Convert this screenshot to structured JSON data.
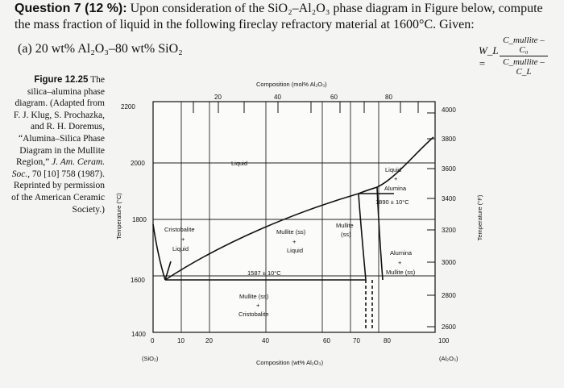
{
  "question": {
    "title": "Question 7 (12 %):",
    "line1_rest": "Upon consideration of the SiO₂–Al₂O₃ phase diagram in Figure below, compute",
    "line2": "the mass fraction of liquid in the following fireclay refractory material at 1600°C. Given:",
    "part_a": "(a) 20 wt% Al₂O₃–80 wt% SiO₂",
    "formula_lhs": "W_L =",
    "formula_num": "C_mullite – C₀",
    "formula_den": "C_mullite – C_L"
  },
  "caption": {
    "figure": "Figure 12.25",
    "text_1": "The silica–alumina phase diagram. (Adapted from F. J. Klug, S. Prochazka, and R. H. Doremus, “Alumina–Silica Phase Diagram in the Mullite Region,”",
    "journal": "J. Am. Ceram. Soc.,",
    "text_2": "70 [10] 758 (1987). Reprinted by permission of the American Ceramic Society.)"
  },
  "diagram": {
    "top_axis_title": "Composition (mol% Al₂O₃)",
    "top_ticks": [
      "20",
      "40",
      "60",
      "80"
    ],
    "bottom_axis_title": "Composition (wt% Al₂O₃)",
    "bottom_ticks": [
      "0",
      "10",
      "20",
      "40",
      "60",
      "70",
      "80",
      "100"
    ],
    "left_axis_title": "Temperature (°C)",
    "left_ticks": [
      "2200",
      "2000",
      "1800",
      "1600",
      "1400"
    ],
    "right_axis_title": "Temperature (°F)",
    "right_ticks": [
      "4000",
      "3800",
      "3600",
      "3400",
      "3200",
      "3000",
      "2800",
      "2600"
    ],
    "end_left": "(SiO₂)",
    "end_right": "(Al₂O₃)",
    "regions": {
      "liquid": "Liquid",
      "liquid_alumina_1": "Liquid",
      "liquid_alumina_plus": "+",
      "liquid_alumina_2": "Alumina",
      "eutectic_right": "1890 ± 10°C",
      "cristobalite_liquid_1": "Cristobalite",
      "cristobalite_liquid_plus": "+",
      "cristobalite_liquid_2": "Liquid",
      "mullite_liquid_1": "Mullite (ss)",
      "mullite_liquid_plus": "+",
      "mullite_liquid_2": "Liquid",
      "mullite_ss_1": "Mullite",
      "mullite_ss_2": "(ss)",
      "alumina_mullite_1": "Alumina",
      "alumina_mullite_plus": "+",
      "alumina_mullite_2": "Mullite (ss)",
      "eutectic_left": "1587 ± 10°C",
      "mullite_cristobalite_1": "Mullite (ss)",
      "mullite_cristobalite_plus": "+",
      "mullite_cristobalite_2": "Cristobalite"
    }
  }
}
